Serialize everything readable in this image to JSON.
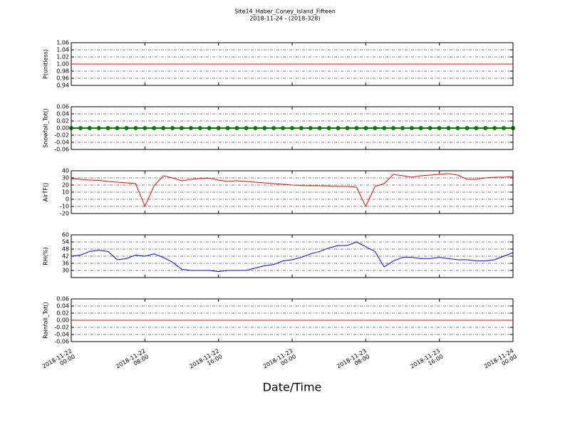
{
  "figure": {
    "title": "Site14_Haber_Coney_Island_Fifteen",
    "subtitle": "2018-11-24 - (2018-328)",
    "xlabel": "Date/Time",
    "x": [
      "2018-11-22 00:00",
      "2018-11-22 01:00",
      "2018-11-22 02:00",
      "2018-11-22 03:00",
      "2018-11-22 04:00",
      "2018-11-22 05:00",
      "2018-11-22 06:00",
      "2018-11-22 07:00",
      "2018-11-22 08:00",
      "2018-11-22 09:00",
      "2018-11-22 10:00",
      "2018-11-22 11:00",
      "2018-11-22 12:00",
      "2018-11-22 13:00",
      "2018-11-22 14:00",
      "2018-11-22 15:00",
      "2018-11-22 16:00",
      "2018-11-22 17:00",
      "2018-11-22 18:00",
      "2018-11-22 19:00",
      "2018-11-22 20:00",
      "2018-11-22 21:00",
      "2018-11-22 22:00",
      "2018-11-22 23:00",
      "2018-11-23 00:00",
      "2018-11-23 01:00",
      "2018-11-23 02:00",
      "2018-11-23 03:00",
      "2018-11-23 04:00",
      "2018-11-23 05:00",
      "2018-11-23 06:00",
      "2018-11-23 07:00",
      "2018-11-23 08:00",
      "2018-11-23 09:00",
      "2018-11-23 10:00",
      "2018-11-23 11:00",
      "2018-11-23 12:00",
      "2018-11-23 13:00",
      "2018-11-23 14:00",
      "2018-11-23 15:00",
      "2018-11-23 16:00",
      "2018-11-23 17:00",
      "2018-11-23 18:00",
      "2018-11-23 19:00",
      "2018-11-23 20:00",
      "2018-11-23 21:00",
      "2018-11-23 22:00",
      "2018-11-23 23:00",
      "2018-11-24 00:00"
    ],
    "xlim": [
      "2018-11-22 00:00",
      "2018-11-24 00:00"
    ],
    "xticks": [
      "2018-11-22 00:00",
      "2018-11-22 08:00",
      "2018-11-22 16:00",
      "2018-11-23 00:00",
      "2018-11-23 08:00",
      "2018-11-23 16:00",
      "2018-11-24 00:00"
    ]
  },
  "chart_data": [
    {
      "type": "line",
      "ylabel": "P(unitless)",
      "grid": "y",
      "ylim": [
        0.94,
        1.06
      ],
      "yticks": [
        0.94,
        0.96,
        0.98,
        {
          "value": 1,
          "label": "1.00"
        },
        1.02,
        1.04,
        1.06
      ],
      "series": [
        {
          "color": "#ff0000",
          "values": [
            1,
            1,
            1,
            1,
            1,
            1,
            1,
            1,
            1,
            1,
            1,
            1,
            1,
            1,
            1,
            1,
            1,
            1,
            1,
            1,
            1,
            1,
            1,
            1,
            1,
            1,
            1,
            1,
            1,
            1,
            1,
            1,
            1,
            1,
            1,
            1,
            1,
            1,
            1,
            1,
            1,
            1,
            1,
            1,
            1,
            1,
            1,
            1,
            1
          ]
        }
      ]
    },
    {
      "type": "line",
      "ylabel": "Snowfall_Tot()",
      "grid": "y",
      "ylim": [
        -0.06,
        0.06
      ],
      "marker": "o",
      "yticks": [
        -0.06,
        -0.04,
        -0.02,
        {
          "value": 0,
          "label": "0.00"
        },
        0.02,
        0.04,
        0.06
      ],
      "series": [
        {
          "color": "#008000",
          "values": [
            0,
            0,
            0,
            0,
            0,
            0,
            0,
            0,
            0,
            0,
            0,
            0,
            0,
            0,
            0,
            0,
            0,
            0,
            0,
            0,
            0,
            0,
            0,
            0,
            0,
            0,
            0,
            0,
            0,
            0,
            0,
            0,
            0,
            0,
            0,
            0,
            0,
            0,
            0,
            0,
            0,
            0,
            0,
            0,
            0,
            0,
            0,
            0,
            0
          ]
        }
      ]
    },
    {
      "type": "line",
      "ylabel": "AirTF()",
      "grid": "y",
      "ylim": [
        -20,
        40
      ],
      "yticks": [
        -20,
        -10,
        0,
        10,
        20,
        30,
        40
      ],
      "series": [
        {
          "color": "#ff0000",
          "values": [
            29,
            28,
            27,
            26.5,
            25,
            24,
            23,
            22,
            -10,
            19,
            33,
            30,
            26,
            28,
            29,
            29.5,
            27,
            25,
            26,
            25,
            24,
            23,
            22,
            21,
            20,
            19.5,
            19,
            19,
            18.5,
            18,
            18,
            17,
            -10,
            18,
            22,
            35,
            33,
            31,
            33,
            34,
            35,
            36,
            34,
            28,
            28,
            30,
            31,
            31,
            32
          ]
        }
      ]
    },
    {
      "type": "line",
      "ylabel": "RH(%)",
      "grid": "y",
      "ylim": [
        24,
        60
      ],
      "yticks": [
        30,
        36,
        42,
        48,
        54,
        60
      ],
      "series": [
        {
          "color": "#0000ff",
          "values": [
            42,
            43,
            46,
            47,
            46,
            39,
            40,
            43,
            42,
            44,
            41,
            37,
            31,
            30,
            30,
            30,
            29,
            30,
            30,
            30,
            32,
            34,
            35,
            38,
            39,
            41,
            44,
            46,
            49,
            51,
            51,
            54,
            50,
            46,
            33,
            38,
            41,
            41,
            40,
            40,
            41,
            40,
            39,
            39,
            38,
            38,
            39,
            42,
            45
          ]
        }
      ]
    },
    {
      "type": "line",
      "ylabel": "Rainfall_Tot()",
      "grid": "y",
      "ylim": [
        -0.06,
        0.06
      ],
      "yticks": [
        -0.06,
        -0.04,
        -0.02,
        {
          "value": 0,
          "label": "0.00"
        },
        0.02,
        0.04,
        0.06
      ],
      "series": [
        {
          "color": "#ff0000",
          "values": [
            0,
            0,
            0,
            0,
            0,
            0,
            0,
            0,
            0,
            0,
            0,
            0,
            0,
            0,
            0,
            0,
            0,
            0,
            0,
            0,
            0,
            0,
            0,
            0,
            0,
            0,
            0,
            0,
            0,
            0,
            0,
            0,
            0,
            0,
            0,
            0,
            0,
            0,
            0,
            0,
            0,
            0,
            0,
            0,
            0,
            0,
            0,
            0,
            0
          ]
        }
      ]
    }
  ]
}
